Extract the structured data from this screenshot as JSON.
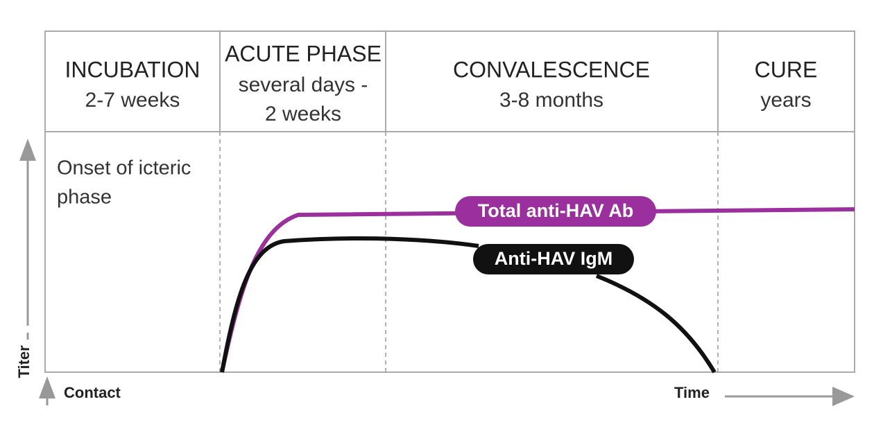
{
  "phases": [
    {
      "title": "INCUBATION",
      "duration": [
        "2-7 weeks"
      ]
    },
    {
      "title": "ACUTE PHASE",
      "duration": [
        "several days -",
        "2 weeks"
      ]
    },
    {
      "title": "CONVALESCENCE",
      "duration": [
        "3-8 months"
      ]
    },
    {
      "title": "CURE",
      "duration": [
        "years"
      ]
    }
  ],
  "annotation": [
    "Onset of icteric",
    "phase"
  ],
  "curves": {
    "total": "Total anti-HAV Ab",
    "igm": "Anti-HAV IgM"
  },
  "axes": {
    "y": "Titer",
    "origin": "Contact",
    "x": "Time"
  }
}
